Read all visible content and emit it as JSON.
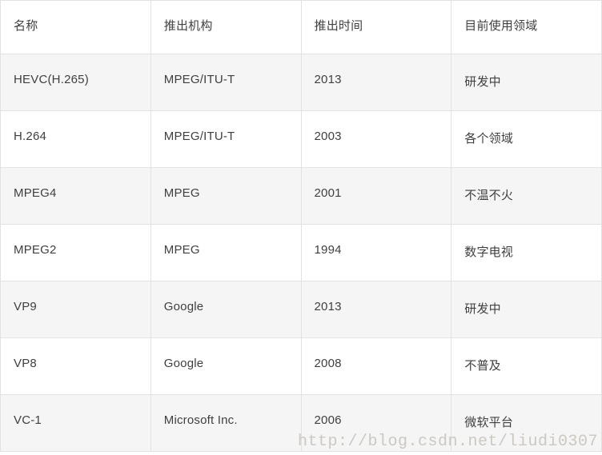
{
  "table": {
    "columns": [
      {
        "key": "name",
        "label": "名称"
      },
      {
        "key": "org",
        "label": "推出机构"
      },
      {
        "key": "year",
        "label": "推出时间"
      },
      {
        "key": "field",
        "label": "目前使用领域"
      }
    ],
    "rows": [
      {
        "name": "HEVC(H.265)",
        "org": "MPEG/ITU-T",
        "year": "2013",
        "field": "研发中"
      },
      {
        "name": "H.264",
        "org": "MPEG/ITU-T",
        "year": "2003",
        "field": "各个领域"
      },
      {
        "name": "MPEG4",
        "org": "MPEG",
        "year": "2001",
        "field": "不温不火"
      },
      {
        "name": "MPEG2",
        "org": "MPEG",
        "year": "1994",
        "field": "数字电视"
      },
      {
        "name": "VP9",
        "org": "Google",
        "year": "2013",
        "field": "研发中"
      },
      {
        "name": "VP8",
        "org": "Google",
        "year": "2008",
        "field": "不普及"
      },
      {
        "name": "VC-1",
        "org": "Microsoft Inc.",
        "year": "2006",
        "field": "微软平台"
      }
    ]
  },
  "watermark": {
    "text": "http://blog.csdn.net/liudi0307"
  },
  "colors": {
    "border": "#e2e2e2",
    "row_alt": "#f5f5f5",
    "text": "#3f3f3f",
    "watermark": "#ccc9c2",
    "background": "#ffffff"
  }
}
